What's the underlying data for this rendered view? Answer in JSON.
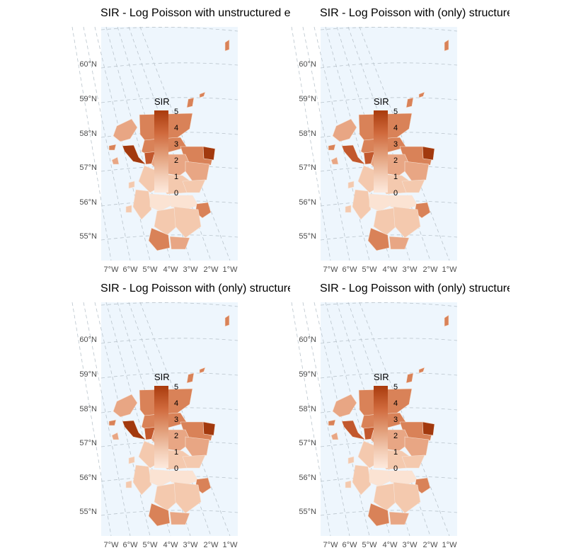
{
  "colors": {
    "panel_bg": "#eef6fd",
    "graticule": "#b9c4cc",
    "low": "#fde9dc",
    "high": "#a93b0d"
  },
  "panels": [
    {
      "title": "SIR - Log Poisson with unstructured error",
      "legend": {
        "title": "SIR",
        "ticks": [
          "5",
          "4",
          "3",
          "2",
          "1",
          "0"
        ]
      },
      "y_labels": [
        "60°N",
        "59°N",
        "58°N",
        "57°N",
        "56°N",
        "55°N"
      ],
      "x_labels": [
        "7°W",
        "6°W",
        "5°W",
        "4°W",
        "3°W",
        "2°W",
        "1°W"
      ]
    },
    {
      "title": "SIR - Log Poisson with (only) structured error CAR",
      "legend": {
        "title": "SIR",
        "ticks": [
          "5",
          "4",
          "3",
          "2",
          "1",
          "0"
        ]
      },
      "y_labels": [
        "60°N",
        "59°N",
        "58°N",
        "57°N",
        "56°N",
        "55°N"
      ],
      "x_labels": [
        "7°W",
        "6°W",
        "5°W",
        "4°W",
        "3°W",
        "2°W",
        "1°W"
      ]
    },
    {
      "title": "SIR - Log Poisson with (only) structured error",
      "legend": {
        "title": "SIR",
        "ticks": [
          "5",
          "4",
          "3",
          "2",
          "1",
          "0"
        ]
      },
      "y_labels": [
        "60°N",
        "59°N",
        "58°N",
        "57°N",
        "56°N",
        "55°N"
      ],
      "x_labels": [
        "7°W",
        "6°W",
        "5°W",
        "4°W",
        "3°W",
        "2°W",
        "1°W"
      ]
    },
    {
      "title": "SIR - Log Poisson with (only) structured error CAR",
      "legend": {
        "title": "SIR",
        "ticks": [
          "5",
          "4",
          "3",
          "2",
          "1",
          "0"
        ]
      },
      "y_labels": [
        "60°N",
        "59°N",
        "58°N",
        "57°N",
        "56°N",
        "55°N"
      ],
      "x_labels": [
        "7°W",
        "6°W",
        "5°W",
        "4°W",
        "3°W",
        "2°W",
        "1°W"
      ]
    }
  ]
}
